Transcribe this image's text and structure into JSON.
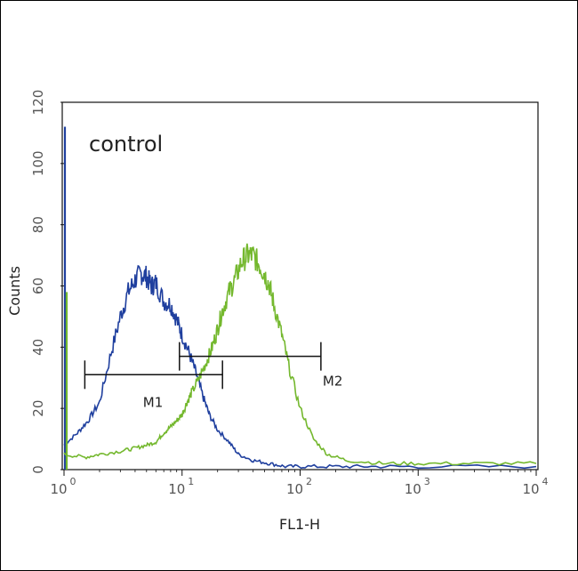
{
  "chart_data": {
    "type": "line",
    "title": "",
    "xlabel": "FL1-H",
    "ylabel": "Counts",
    "x_scale": "log",
    "xlim": [
      1,
      10000
    ],
    "ylim": [
      0,
      120
    ],
    "x_ticks": [
      {
        "value": 1,
        "base": "10",
        "exp": "0"
      },
      {
        "value": 10,
        "base": "10",
        "exp": "1"
      },
      {
        "value": 100,
        "base": "10",
        "exp": "2"
      },
      {
        "value": 1000,
        "base": "10",
        "exp": "3"
      },
      {
        "value": 10000,
        "base": "10",
        "exp": "4"
      }
    ],
    "y_ticks": [
      {
        "value": 0,
        "label": "0"
      },
      {
        "value": 20,
        "label": "20"
      },
      {
        "value": 40,
        "label": "40"
      },
      {
        "value": 60,
        "label": "60"
      },
      {
        "value": 80,
        "label": "80"
      },
      {
        "value": 100,
        "label": "100"
      },
      {
        "value": 120,
        "label": "120"
      }
    ],
    "annotation": "control",
    "markers": [
      {
        "label": "M1",
        "start": 1.5,
        "end": 22,
        "y": 31
      },
      {
        "label": "M2",
        "start": 9.5,
        "end": 150,
        "y": 37
      }
    ],
    "series": [
      {
        "color": "#1f3f9e",
        "x": [
          1.0,
          1.3,
          1.6,
          2.0,
          2.5,
          3.0,
          3.5,
          4.0,
          4.5,
          5.0,
          5.5,
          6.0,
          7.0,
          8.0,
          9.0,
          10.0,
          11.5,
          13.0,
          15.0,
          17.0,
          20.0,
          25.0,
          30.0,
          40.0,
          55.0,
          75.0,
          110.0,
          200.0,
          400.0,
          1000.0,
          10000.0
        ],
        "y": [
          8,
          12,
          16,
          22,
          38,
          50,
          58,
          62,
          64,
          63,
          60,
          61,
          55,
          54,
          49,
          44,
          38,
          32,
          24,
          18,
          13,
          9,
          5,
          3,
          2,
          1,
          1,
          1,
          1,
          1,
          1
        ]
      },
      {
        "color": "#74b82e",
        "x": [
          1.0,
          1.5,
          2.0,
          3.0,
          4.0,
          5.0,
          6.0,
          7.0,
          8.0,
          9.0,
          10.0,
          11.0,
          12.0,
          14.0,
          16.0,
          18.0,
          20.0,
          22.0,
          25.0,
          28.0,
          32.0,
          36.0,
          40.0,
          45.0,
          50.0,
          55.0,
          60.0,
          70.0,
          80.0,
          100.0,
          130.0,
          170.0,
          250.0,
          500.0,
          1000.0,
          3000.0,
          10000.0
        ],
        "y": [
          5,
          4,
          5,
          6,
          7,
          8,
          9,
          12,
          14,
          16,
          18,
          22,
          25,
          30,
          35,
          40,
          46,
          52,
          58,
          62,
          68,
          70,
          70,
          67,
          64,
          60,
          54,
          44,
          34,
          20,
          10,
          5,
          3,
          2,
          2,
          2,
          2
        ]
      }
    ]
  }
}
